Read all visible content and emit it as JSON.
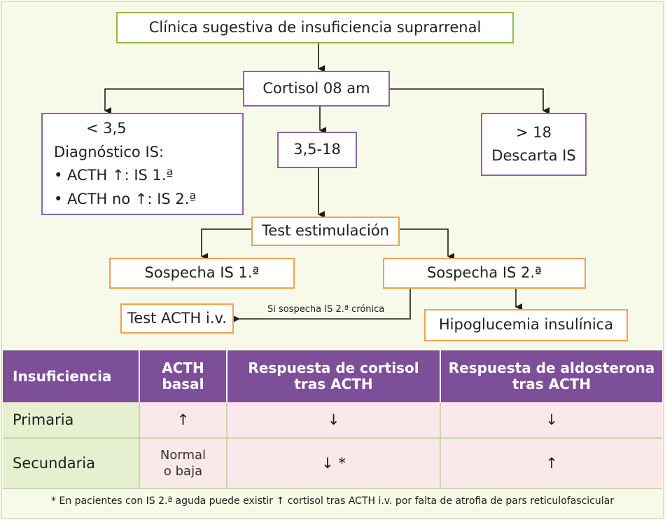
{
  "flow": {
    "clinica": "Clínica sugestiva de insuficiencia suprarrenal",
    "cortisol": "Cortisol 08 am",
    "low": {
      "threshold": "< 3,5",
      "title": "Diagnóstico IS:",
      "item1": "• ACTH ↑: IS 1.ª",
      "item2": "• ACTH no ↑: IS 2.ª"
    },
    "mid": "3,5-18",
    "high": {
      "threshold": "> 18",
      "text": "Descarta IS"
    },
    "test": "Test estimulación",
    "sospecha1": "Sospecha IS 1.ª",
    "sospecha2": "Sospecha IS 2.ª",
    "test_acth": "Test ACTH i.v.",
    "arrow_label": "Si sospecha IS 2.ª crónica",
    "hipoglucemia": "Hipoglucemia insulínica"
  },
  "table": {
    "headers": [
      "Insuficiencia",
      "ACTH basal",
      "Respuesta de cortisol tras ACTH",
      "Respuesta de aldosterona tras ACTH"
    ],
    "rows": [
      {
        "label": "Primaria",
        "acth": "↑",
        "cortisol": "↓",
        "aldosterona": "↓"
      },
      {
        "label": "Secundaria",
        "acth_line1": "Normal",
        "acth_line2": "o baja",
        "cortisol": "↓ *",
        "aldosterona": "↑"
      }
    ]
  },
  "footnote": "* En pacientes con IS 2.ª aguda puede existir ↑ cortisol tras ACTH i.v. por falta de atrofia de pars reticulofascicular",
  "colors": {
    "green_border": "#8dbd3f",
    "purple_border": "#8a63b2",
    "orange_border": "#f0a24e",
    "header_bg": "#7e4f99",
    "row_label_bg": "#e6efcf",
    "cell_bg": "#fbe8ea",
    "page_bg": "#f7f9e9"
  }
}
